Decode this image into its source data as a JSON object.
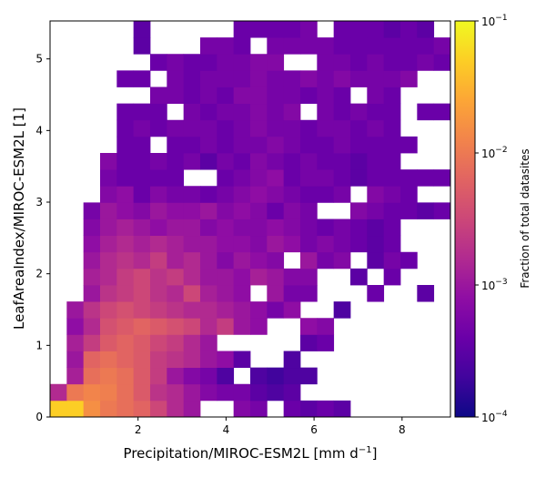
{
  "chart_data": {
    "type": "heatmap",
    "xlabel": "Precipitation/MIROC-ESM2L [mm d",
    "xlabel_sup": "−1",
    "xlabel_end": "]",
    "ylabel": "LeafAreaIndex/MIROC-ESM2L [1]",
    "colorbar_label": "Fraction of total datasites",
    "xlim": [
      0.0,
      9.1
    ],
    "ylim": [
      0.0,
      5.53
    ],
    "x_ticks": [
      2,
      4,
      6,
      8
    ],
    "x_tick_labels": [
      "2",
      "4",
      "6",
      "8"
    ],
    "y_ticks": [
      0,
      1,
      2,
      3,
      4,
      5
    ],
    "y_tick_labels": [
      "0",
      "1",
      "2",
      "3",
      "4",
      "5"
    ],
    "colorbar": {
      "scale": "log",
      "range": [
        0.0001,
        0.1
      ],
      "colormap": "plasma",
      "ticks": [
        {
          "value": 0.1,
          "base": "10",
          "exp": "−1"
        },
        {
          "value": 0.01,
          "base": "10",
          "exp": "−2"
        },
        {
          "value": 0.001,
          "base": "10",
          "exp": "−3"
        },
        {
          "value": 0.0001,
          "base": "10",
          "exp": "−4"
        }
      ]
    },
    "bins": {
      "nx": 24,
      "ny": 24,
      "x_range": [
        0.0,
        9.1
      ],
      "y_range": [
        0.0,
        5.53
      ]
    },
    "cells_note_row0_is_bottom": true,
    "grid_log10_fraction": [
      "QQQQQQQQ.......................",
      "LLLL BC 8 6 5 4 4 3 . 3 . . 2 2 . . . 2 2 . . . . . . .",
      "...",
      "..."
    ],
    "cells": [
      [
        0,
        -1.3
      ],
      [
        1,
        -1.3
      ],
      [
        2,
        -1.8
      ],
      [
        3,
        -2.0
      ],
      [
        4,
        -2.1
      ],
      [
        5,
        -2.2
      ],
      [
        6,
        -2.5
      ],
      [
        7,
        -2.8
      ],
      [
        8,
        -3.0
      ],
      [
        11,
        -3.2
      ],
      [
        12,
        -3.3
      ],
      [
        14,
        -3.4
      ],
      [
        15,
        -3.5
      ],
      [
        16,
        -3.4
      ],
      [
        17,
        -3.5
      ]
    ]
  }
}
